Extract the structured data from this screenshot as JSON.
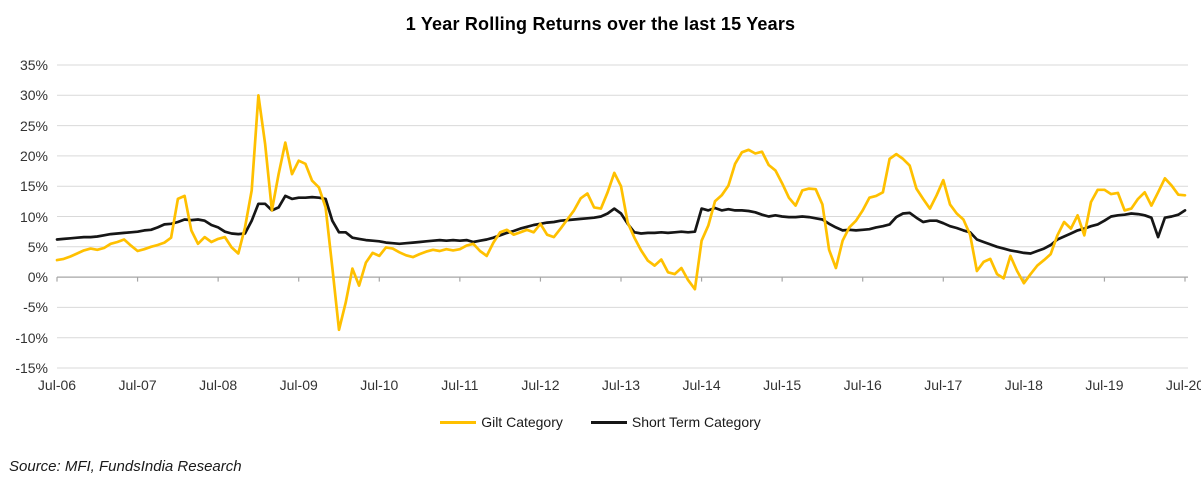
{
  "title": "1 Year Rolling Returns over the last 15 Years",
  "source_note": "Source: MFI, FundsIndia Research",
  "chart_data": {
    "type": "line",
    "title": "1 Year Rolling Returns over the last 15 Years",
    "x_unit": "month",
    "x_range": [
      "Jul-06",
      "Jul-20"
    ],
    "x_tick_labels": [
      "Jul-06",
      "Jul-07",
      "Jul-08",
      "Jul-09",
      "Jul-10",
      "Jul-11",
      "Jul-12",
      "Jul-13",
      "Jul-14",
      "Jul-15",
      "Jul-16",
      "Jul-17",
      "Jul-18",
      "Jul-19",
      "Jul-20"
    ],
    "ylim": [
      -15,
      35
    ],
    "y_ticks": [
      35,
      30,
      25,
      20,
      15,
      10,
      5,
      0,
      -5,
      -10,
      -15
    ],
    "y_tick_format": "percent",
    "grid": "horizontal",
    "legend_position": "bottom-center",
    "colors": {
      "gilt": "#FFC000",
      "short_term": "#161616",
      "gridline": "#D9D9D9",
      "zero_axis": "#A6A6A6"
    },
    "series": [
      {
        "name": "Gilt Category",
        "color": "#FFC000",
        "values": [
          2.8,
          3.0,
          3.4,
          3.9,
          4.4,
          4.7,
          4.5,
          4.8,
          5.5,
          5.8,
          6.2,
          5.2,
          4.3,
          4.6,
          5.0,
          5.3,
          5.7,
          6.5,
          12.9,
          13.4,
          7.7,
          5.5,
          6.6,
          5.8,
          6.3,
          6.6,
          4.9,
          3.9,
          8.2,
          14.3,
          30.0,
          22.0,
          11.0,
          17.0,
          22.2,
          17.0,
          19.2,
          18.7,
          15.9,
          14.8,
          11.5,
          1.6,
          -8.7,
          -4.2,
          1.4,
          -1.4,
          2.4,
          4.0,
          3.5,
          4.9,
          4.7,
          4.1,
          3.6,
          3.3,
          3.8,
          4.2,
          4.5,
          4.3,
          4.6,
          4.4,
          4.6,
          5.2,
          5.5,
          4.3,
          3.5,
          5.7,
          7.4,
          7.8,
          7.0,
          7.4,
          7.8,
          7.4,
          8.8,
          7.0,
          6.6,
          8.0,
          9.5,
          11.0,
          13.0,
          13.8,
          11.5,
          11.3,
          14.0,
          17.2,
          15.0,
          9.0,
          6.5,
          4.4,
          2.7,
          1.9,
          2.9,
          0.8,
          0.5,
          1.5,
          -0.5,
          -2.0,
          6.0,
          8.5,
          12.5,
          13.5,
          15.1,
          18.7,
          20.6,
          21.0,
          20.4,
          20.7,
          18.5,
          17.6,
          15.5,
          13.1,
          11.8,
          14.3,
          14.6,
          14.5,
          12.0,
          4.5,
          1.5,
          6.0,
          8.2,
          9.3,
          11.0,
          13.1,
          13.4,
          14.0,
          19.5,
          20.3,
          19.5,
          18.4,
          14.6,
          12.9,
          11.3,
          13.5,
          16.0,
          12.0,
          10.5,
          9.5,
          7.0,
          1.0,
          2.5,
          3.0,
          0.5,
          -0.2,
          3.5,
          1.0,
          -1.0,
          0.5,
          1.9,
          2.8,
          3.8,
          6.9,
          9.1,
          8.0,
          10.2,
          6.9,
          12.4,
          14.4,
          14.4,
          13.7,
          13.9,
          11.0,
          11.3,
          12.9,
          14.0,
          11.8,
          14.0,
          16.3,
          15.1,
          13.6,
          13.5
        ]
      },
      {
        "name": "Short Term Category",
        "color": "#161616",
        "values": [
          6.2,
          6.3,
          6.4,
          6.5,
          6.6,
          6.6,
          6.7,
          6.9,
          7.1,
          7.2,
          7.3,
          7.4,
          7.5,
          7.7,
          7.8,
          8.2,
          8.7,
          8.8,
          9.1,
          9.5,
          9.4,
          9.5,
          9.3,
          8.6,
          8.2,
          7.5,
          7.2,
          7.1,
          7.2,
          9.3,
          12.1,
          12.1,
          11.0,
          11.5,
          13.4,
          12.9,
          13.1,
          13.1,
          13.2,
          13.1,
          12.9,
          9.3,
          7.4,
          7.4,
          6.5,
          6.3,
          6.1,
          6.0,
          5.9,
          5.7,
          5.6,
          5.5,
          5.6,
          5.7,
          5.8,
          5.9,
          6.0,
          6.1,
          6.0,
          6.1,
          6.0,
          6.1,
          5.8,
          6.0,
          6.2,
          6.5,
          6.9,
          7.3,
          7.6,
          8.0,
          8.3,
          8.6,
          8.8,
          9.0,
          9.1,
          9.3,
          9.4,
          9.5,
          9.6,
          9.7,
          9.8,
          10.0,
          10.5,
          11.3,
          10.5,
          8.8,
          7.4,
          7.2,
          7.3,
          7.3,
          7.4,
          7.3,
          7.4,
          7.5,
          7.4,
          7.5,
          11.3,
          11.0,
          11.4,
          11.0,
          11.2,
          11.0,
          11.0,
          10.9,
          10.7,
          10.3,
          10.0,
          10.2,
          10.0,
          9.9,
          9.9,
          10.0,
          9.9,
          9.7,
          9.5,
          8.8,
          8.2,
          7.7,
          7.8,
          7.7,
          7.8,
          7.9,
          8.2,
          8.4,
          8.7,
          9.9,
          10.5,
          10.6,
          9.8,
          9.1,
          9.3,
          9.3,
          8.9,
          8.4,
          8.1,
          7.7,
          7.4,
          6.2,
          5.8,
          5.4,
          5.0,
          4.7,
          4.4,
          4.2,
          4.0,
          3.9,
          4.3,
          4.7,
          5.3,
          6.2,
          6.7,
          7.2,
          7.7,
          8.0,
          8.4,
          8.7,
          9.3,
          10.0,
          10.2,
          10.3,
          10.5,
          10.4,
          10.2,
          9.8,
          6.6,
          9.8,
          10.0,
          10.3,
          11.0
        ]
      }
    ]
  }
}
